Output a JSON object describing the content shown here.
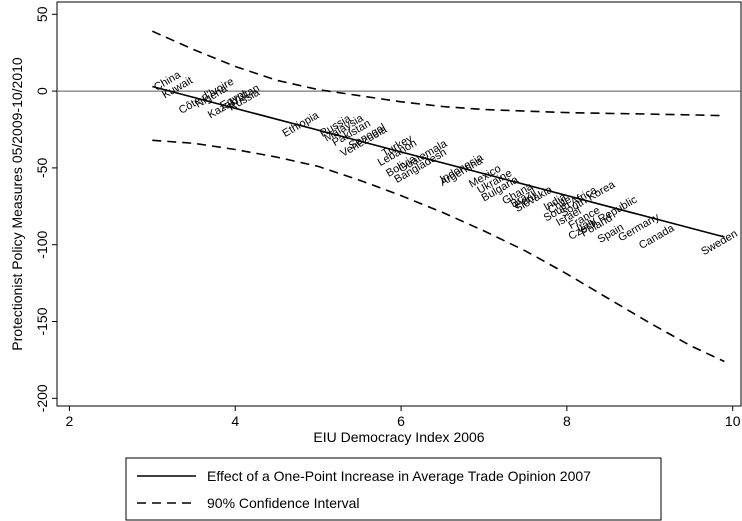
{
  "chart_data": {
    "type": "line",
    "xlabel": "EIU Democracy Index 2006",
    "ylabel": "Protectionist Policy Measures 05/2009-10/2010",
    "xlim": [
      1.85,
      10.1
    ],
    "ylim": [
      -205,
      58
    ],
    "x_ticks": [
      2,
      4,
      6,
      8,
      10
    ],
    "y_ticks": [
      50,
      0,
      -50,
      -100,
      -150,
      -200
    ],
    "reference_line_y": 0,
    "legend": {
      "placement": "bottom"
    },
    "series": [
      {
        "name": "Effect of a One-Point Increase in Average Trade Opinion 2007",
        "style": "solid",
        "x": [
          3.0,
          9.9
        ],
        "y": [
          3,
          -95
        ]
      },
      {
        "name": "90% Confidence Interval",
        "style": "dashed",
        "x": [
          3.0,
          3.5,
          4.0,
          4.5,
          5.0,
          5.5,
          6.0,
          6.5,
          7.0,
          7.5,
          8.0,
          8.5,
          9.0,
          9.5,
          9.9
        ],
        "y": [
          39,
          27,
          16,
          7,
          1,
          -3,
          -7,
          -10,
          -12,
          -13,
          -14,
          -14.5,
          -15,
          -15.5,
          -16
        ]
      },
      {
        "name": "",
        "style": "dashed",
        "x": [
          3.0,
          3.5,
          4.0,
          4.5,
          5.0,
          5.5,
          6.0,
          6.5,
          7.0,
          7.5,
          8.0,
          8.5,
          9.0,
          9.5,
          9.9
        ],
        "y": [
          -32,
          -34,
          -38,
          -43,
          -49,
          -58,
          -68,
          -79,
          -91,
          -104,
          -119,
          -135,
          -151,
          -166,
          -176
        ]
      }
    ],
    "point_labels": [
      {
        "label": "China",
        "x": 3.05,
        "y": 0
      },
      {
        "label": "Kuwait",
        "x": 3.15,
        "y": -5
      },
      {
        "label": "Côte d'Ivoire",
        "x": 3.35,
        "y": -15
      },
      {
        "label": "Nigeria",
        "x": 3.55,
        "y": -11
      },
      {
        "label": "Kazakhstan",
        "x": 3.7,
        "y": -18
      },
      {
        "label": "Egypt",
        "x": 3.85,
        "y": -12
      },
      {
        "label": "Russia",
        "x": 3.95,
        "y": -13
      },
      {
        "label": "Ethiopia",
        "x": 4.6,
        "y": -30
      },
      {
        "label": "Russia",
        "x": 5.05,
        "y": -30
      },
      {
        "label": "Malaysia",
        "x": 5.1,
        "y": -33
      },
      {
        "label": "Pakistan",
        "x": 5.2,
        "y": -36
      },
      {
        "label": "Senegal",
        "x": 5.4,
        "y": -38
      },
      {
        "label": "Venezuela",
        "x": 5.3,
        "y": -43
      },
      {
        "label": "Turkey",
        "x": 5.8,
        "y": -43
      },
      {
        "label": "Lebanon",
        "x": 5.75,
        "y": -49
      },
      {
        "label": "Bolivia",
        "x": 5.85,
        "y": -56
      },
      {
        "label": "Guatemala",
        "x": 6.0,
        "y": -53
      },
      {
        "label": "Bangladesh",
        "x": 5.95,
        "y": -60
      },
      {
        "label": "Indonesia",
        "x": 6.5,
        "y": -60
      },
      {
        "label": "Argentina",
        "x": 6.5,
        "y": -62
      },
      {
        "label": "Mexico",
        "x": 6.85,
        "y": -63
      },
      {
        "label": "Ukraine",
        "x": 6.95,
        "y": -67
      },
      {
        "label": "Bulgaria",
        "x": 7.0,
        "y": -72
      },
      {
        "label": "Ghana",
        "x": 7.25,
        "y": -74
      },
      {
        "label": "Brazil",
        "x": 7.35,
        "y": -76
      },
      {
        "label": "Peru",
        "x": 7.4,
        "y": -77
      },
      {
        "label": "Slovakia",
        "x": 7.4,
        "y": -79
      },
      {
        "label": "India",
        "x": 7.75,
        "y": -78
      },
      {
        "label": "Chile",
        "x": 7.8,
        "y": -80
      },
      {
        "label": "South Korea",
        "x": 7.95,
        "y": -82
      },
      {
        "label": "South Africa",
        "x": 7.75,
        "y": -85
      },
      {
        "label": "Israel",
        "x": 7.9,
        "y": -88
      },
      {
        "label": "France",
        "x": 8.05,
        "y": -90
      },
      {
        "label": "Italy",
        "x": 8.15,
        "y": -92
      },
      {
        "label": "Czech Republic",
        "x": 8.05,
        "y": -97
      },
      {
        "label": "Poland",
        "x": 8.2,
        "y": -95
      },
      {
        "label": "Spain",
        "x": 8.4,
        "y": -99
      },
      {
        "label": "Germany",
        "x": 8.65,
        "y": -98
      },
      {
        "label": "Canada",
        "x": 8.9,
        "y": -103
      },
      {
        "label": "Sweden",
        "x": 9.65,
        "y": -107
      }
    ]
  }
}
